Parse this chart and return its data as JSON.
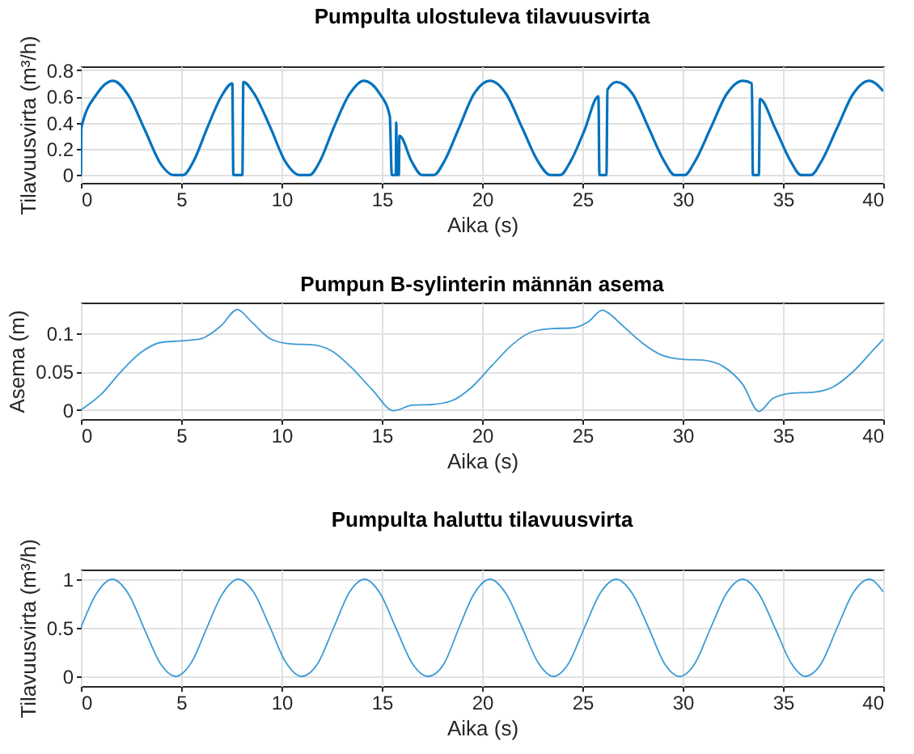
{
  "chart_data": [
    {
      "type": "line",
      "title": "Pumpulta ulostuleva tilavuusvirta",
      "xlabel": "Aika (s)",
      "ylabel": "Tilavuusvirta (m³/h)",
      "xlim": [
        0,
        40
      ],
      "xticks": [
        0,
        5,
        10,
        15,
        20,
        25,
        30,
        35,
        40
      ],
      "ylim": [
        -0.06,
        0.83
      ],
      "yticks": [
        0,
        0.2,
        0.4,
        0.6,
        0.8
      ],
      "grid": true,
      "series": [
        {
          "color": "#0072bd",
          "x": [
            0,
            0.02,
            0.8,
            1.6,
            2.4,
            3.2,
            4.0,
            4.6,
            5.1,
            5.6,
            6.3,
            7.0,
            7.55,
            7.6,
            8.05,
            8.1,
            8.6,
            9.4,
            10.2,
            10.9,
            11.4,
            11.9,
            12.6,
            13.4,
            14.1,
            14.9,
            15.4,
            15.5,
            15.7,
            15.72,
            15.76,
            15.85,
            15.88,
            16.5,
            17.0,
            17.6,
            18.1,
            18.85,
            19.6,
            20.4,
            21.2,
            22.0,
            22.8,
            23.4,
            23.9,
            24.4,
            25.1,
            25.8,
            25.85,
            26.2,
            26.25,
            26.7,
            27.5,
            28.3,
            29.1,
            29.6,
            30.1,
            30.6,
            31.4,
            32.2,
            33.0,
            33.45,
            33.5,
            33.8,
            33.85,
            34.6,
            35.4,
            35.9,
            36.4,
            36.9,
            37.7,
            38.5,
            39.3,
            40
          ],
          "values": [
            0,
            0.36,
            0.62,
            0.72,
            0.6,
            0.34,
            0.08,
            0,
            0,
            0.1,
            0.36,
            0.6,
            0.7,
            0,
            0,
            0.71,
            0.63,
            0.38,
            0.1,
            0,
            0,
            0.1,
            0.36,
            0.62,
            0.72,
            0.62,
            0.45,
            0,
            0,
            0.4,
            0,
            0,
            0.3,
            0.1,
            0,
            0,
            0.1,
            0.36,
            0.62,
            0.72,
            0.62,
            0.36,
            0.1,
            0,
            0,
            0.1,
            0.34,
            0.6,
            0,
            0,
            0.65,
            0.71,
            0.62,
            0.36,
            0.1,
            0,
            0,
            0.1,
            0.36,
            0.62,
            0.72,
            0.7,
            0,
            0,
            0.58,
            0.36,
            0.1,
            0,
            0,
            0.1,
            0.36,
            0.62,
            0.72,
            0.64
          ]
        }
      ]
    },
    {
      "type": "line",
      "title": "Pumpun B-sylinterin männän asema",
      "xlabel": "Aika (s)",
      "ylabel": "Asema (m)",
      "xlim": [
        0,
        40
      ],
      "xticks": [
        0,
        5,
        10,
        15,
        20,
        25,
        30,
        35,
        40
      ],
      "ylim": [
        -0.012,
        0.14
      ],
      "yticks": [
        0,
        0.05,
        0.1
      ],
      "grid": true,
      "series": [
        {
          "color": "#3d9bd6",
          "x": [
            0,
            1,
            2,
            3,
            4,
            5,
            6,
            7,
            7.8,
            8.5,
            9.5,
            10.5,
            11.5,
            12.5,
            13.5,
            14.5,
            15.6,
            16.5,
            17.5,
            18.5,
            19.5,
            20.5,
            21.5,
            22.5,
            23.5,
            24.5,
            25.3,
            26,
            26.2,
            27,
            28,
            29,
            30,
            31,
            32,
            33,
            33.8,
            34.5,
            35.5,
            36.5,
            37.5,
            38.5,
            39.5,
            40
          ],
          "values": [
            0,
            0.02,
            0.05,
            0.075,
            0.088,
            0.09,
            0.093,
            0.11,
            0.131,
            0.115,
            0.092,
            0.086,
            0.085,
            0.077,
            0.055,
            0.027,
            -0.001,
            0.006,
            0.007,
            0.012,
            0.03,
            0.058,
            0.085,
            0.102,
            0.106,
            0.107,
            0.115,
            0.13,
            0.128,
            0.11,
            0.087,
            0.071,
            0.066,
            0.065,
            0.057,
            0.033,
            -0.002,
            0.015,
            0.022,
            0.023,
            0.03,
            0.05,
            0.078,
            0.092
          ]
        }
      ]
    },
    {
      "type": "line",
      "title": "Pumpulta haluttu tilavuusvirta",
      "xlabel": "Aika (s)",
      "ylabel": "Tilavuusvirta (m³/h)",
      "xlim": [
        0,
        40
      ],
      "xticks": [
        0,
        5,
        10,
        15,
        20,
        25,
        30,
        35,
        40
      ],
      "ylim": [
        -0.1,
        1.1
      ],
      "yticks": [
        0,
        0.5,
        1
      ],
      "grid": true,
      "series": [
        {
          "color": "#3d9bd6",
          "x": [
            0,
            0.8,
            1.57,
            2.4,
            3.2,
            4,
            4.71,
            5.5,
            6.28,
            7.0,
            7.85,
            8.6,
            9.4,
            10.2,
            11.0,
            11.8,
            12.6,
            13.4,
            14.14,
            14.9,
            15.7,
            16.5,
            17.3,
            18.1,
            18.85,
            19.6,
            20.4,
            21.2,
            22.0,
            22.8,
            23.56,
            24.3,
            25.1,
            25.9,
            26.7,
            27.5,
            28.3,
            29.1,
            29.85,
            30.6,
            31.4,
            32.2,
            33.0,
            33.8,
            34.6,
            35.4,
            36.1,
            36.9,
            37.7,
            38.5,
            39.3,
            40
          ],
          "values": [
            0.5,
            0.86,
            1,
            0.84,
            0.47,
            0.12,
            0,
            0.14,
            0.5,
            0.83,
            1,
            0.87,
            0.52,
            0.15,
            0,
            0.13,
            0.5,
            0.87,
            1,
            0.86,
            0.5,
            0.14,
            0,
            0.13,
            0.5,
            0.85,
            1,
            0.85,
            0.5,
            0.14,
            0,
            0.13,
            0.5,
            0.86,
            1,
            0.85,
            0.5,
            0.13,
            0,
            0.13,
            0.5,
            0.86,
            1,
            0.85,
            0.5,
            0.14,
            0,
            0.13,
            0.5,
            0.86,
            1,
            0.87
          ]
        }
      ]
    }
  ]
}
